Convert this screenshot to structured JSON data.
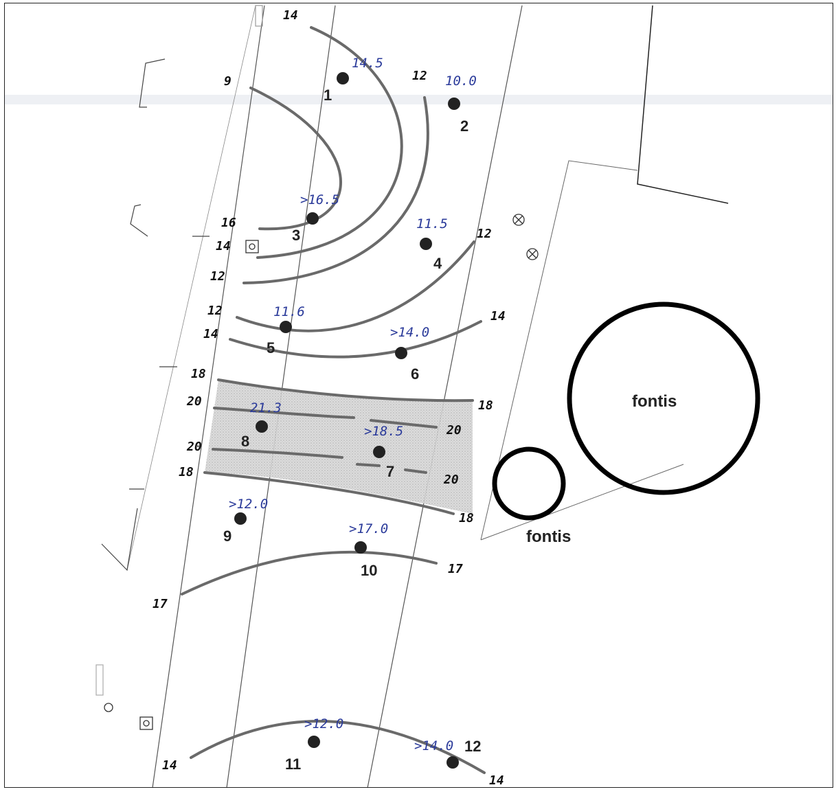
{
  "colors": {
    "contour": "#6a6a6a",
    "ink": "#111111",
    "value_ink": "#2a3a9a",
    "hatch": "#c6c6c6"
  },
  "labels": {
    "fontis_large": "fontis",
    "fontis_small": "fontis"
  },
  "points": [
    {
      "id": "1",
      "value": "14.5"
    },
    {
      "id": "2",
      "value": "10.0"
    },
    {
      "id": "3",
      "value": ">16.5"
    },
    {
      "id": "4",
      "value": "11.5"
    },
    {
      "id": "5",
      "value": "11.6"
    },
    {
      "id": "6",
      "value": ">14.0"
    },
    {
      "id": "7",
      "value": ">18.5"
    },
    {
      "id": "8",
      "value": "21.3"
    },
    {
      "id": "9",
      "value": ">12.0"
    },
    {
      "id": "10",
      "value": ">17.0"
    },
    {
      "id": "11",
      "value": ">12.0"
    },
    {
      "id": "12",
      "value": ">14.0"
    }
  ],
  "contour_labels": {
    "c1_start": "14",
    "c2_start": "9",
    "c3_end": "12",
    "c4_start": "16",
    "c5_start": "14",
    "c6_start": "12",
    "c7_start": "12",
    "c7_end": "12",
    "c8_start": "14",
    "c8_end": "14",
    "c9_start": "18",
    "c9_end": "18",
    "c10_start": "20",
    "c10_end": "20",
    "c11_start": "20",
    "c11_end": "20",
    "c12_start": "18",
    "c12_end": "18",
    "c13_start": "17",
    "c13_end": "17",
    "c14_start": "14",
    "c14_end": "14"
  }
}
